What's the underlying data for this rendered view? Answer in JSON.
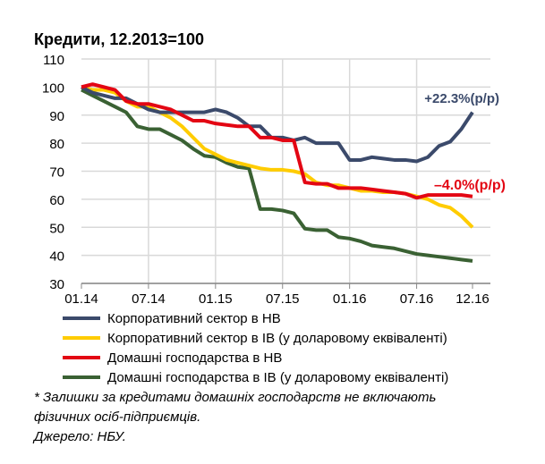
{
  "chart_data": {
    "type": "line",
    "title": "Кредити, 12.2013=100",
    "xlabel": "",
    "ylabel": "",
    "ylim": [
      30,
      110
    ],
    "yticks": [
      30,
      40,
      50,
      60,
      70,
      80,
      90,
      100,
      110
    ],
    "xtick_labels": [
      "01.14",
      "07.14",
      "01.15",
      "07.15",
      "01.16",
      "07.16",
      "12.16"
    ],
    "xtick_index": [
      0,
      6,
      12,
      18,
      24,
      30,
      35
    ],
    "grid": true,
    "series": [
      {
        "name": "Корпоративний сектор в НВ",
        "color": "#3B4A6B",
        "values": [
          100,
          98,
          97,
          96,
          96,
          94,
          92,
          91,
          91,
          91,
          91,
          91,
          92,
          91,
          89,
          86,
          86,
          82,
          82,
          81,
          82,
          80,
          80,
          80,
          74,
          74,
          75,
          74.5,
          74,
          74,
          73.5,
          75,
          79,
          80.5,
          85,
          91
        ]
      },
      {
        "name": "Корпоративний сектор в ІВ (у доларовому еквіваленті)",
        "color": "#FFCC00",
        "values": [
          100,
          99,
          99,
          98,
          95,
          93,
          93,
          91,
          89,
          86,
          82,
          78,
          76,
          74,
          73,
          72,
          71,
          70.5,
          70.5,
          70,
          69,
          66,
          65,
          65,
          64,
          63,
          63,
          62.5,
          62.5,
          62,
          61,
          60,
          58,
          57,
          54,
          50
        ]
      },
      {
        "name": "Домашні господарства в НВ",
        "color": "#E30613",
        "values": [
          100,
          101,
          100,
          99,
          95,
          94,
          94,
          93,
          92,
          90,
          88,
          88,
          87,
          86.5,
          86,
          86,
          82,
          82,
          81,
          81,
          66,
          65.5,
          65.5,
          64,
          64,
          64,
          63.5,
          63,
          62.5,
          62,
          60.5,
          61.5,
          61.5,
          61.5,
          61.5,
          61
        ]
      },
      {
        "name": "Домашні господарства в ІВ (у доларовому еквіваленті)",
        "color": "#3A6133",
        "values": [
          99,
          97,
          95,
          93,
          91,
          86,
          85,
          85,
          83,
          81,
          78,
          75.5,
          75,
          73,
          71.5,
          71,
          56.5,
          56.5,
          56,
          55,
          49.5,
          49,
          49,
          46.5,
          46,
          45,
          43.5,
          43,
          42.5,
          41.5,
          40.5,
          40,
          39.5,
          39,
          38.5,
          38
        ]
      }
    ],
    "annotations": [
      {
        "text": "+22.3%(p/p)",
        "color": "#3B4A6B"
      },
      {
        "text": "–4.0%(p/p)",
        "color": "#E30613"
      }
    ]
  },
  "footnote": "* Залишки за кредитами домашніх господарств не включають фізичних осіб-підприємців.",
  "footnote_line1": "* Залишки за кредитами домашніх господарств не включають",
  "footnote_line2": "фізичних осіб-підприємців.",
  "source": "Джерело: НБУ."
}
